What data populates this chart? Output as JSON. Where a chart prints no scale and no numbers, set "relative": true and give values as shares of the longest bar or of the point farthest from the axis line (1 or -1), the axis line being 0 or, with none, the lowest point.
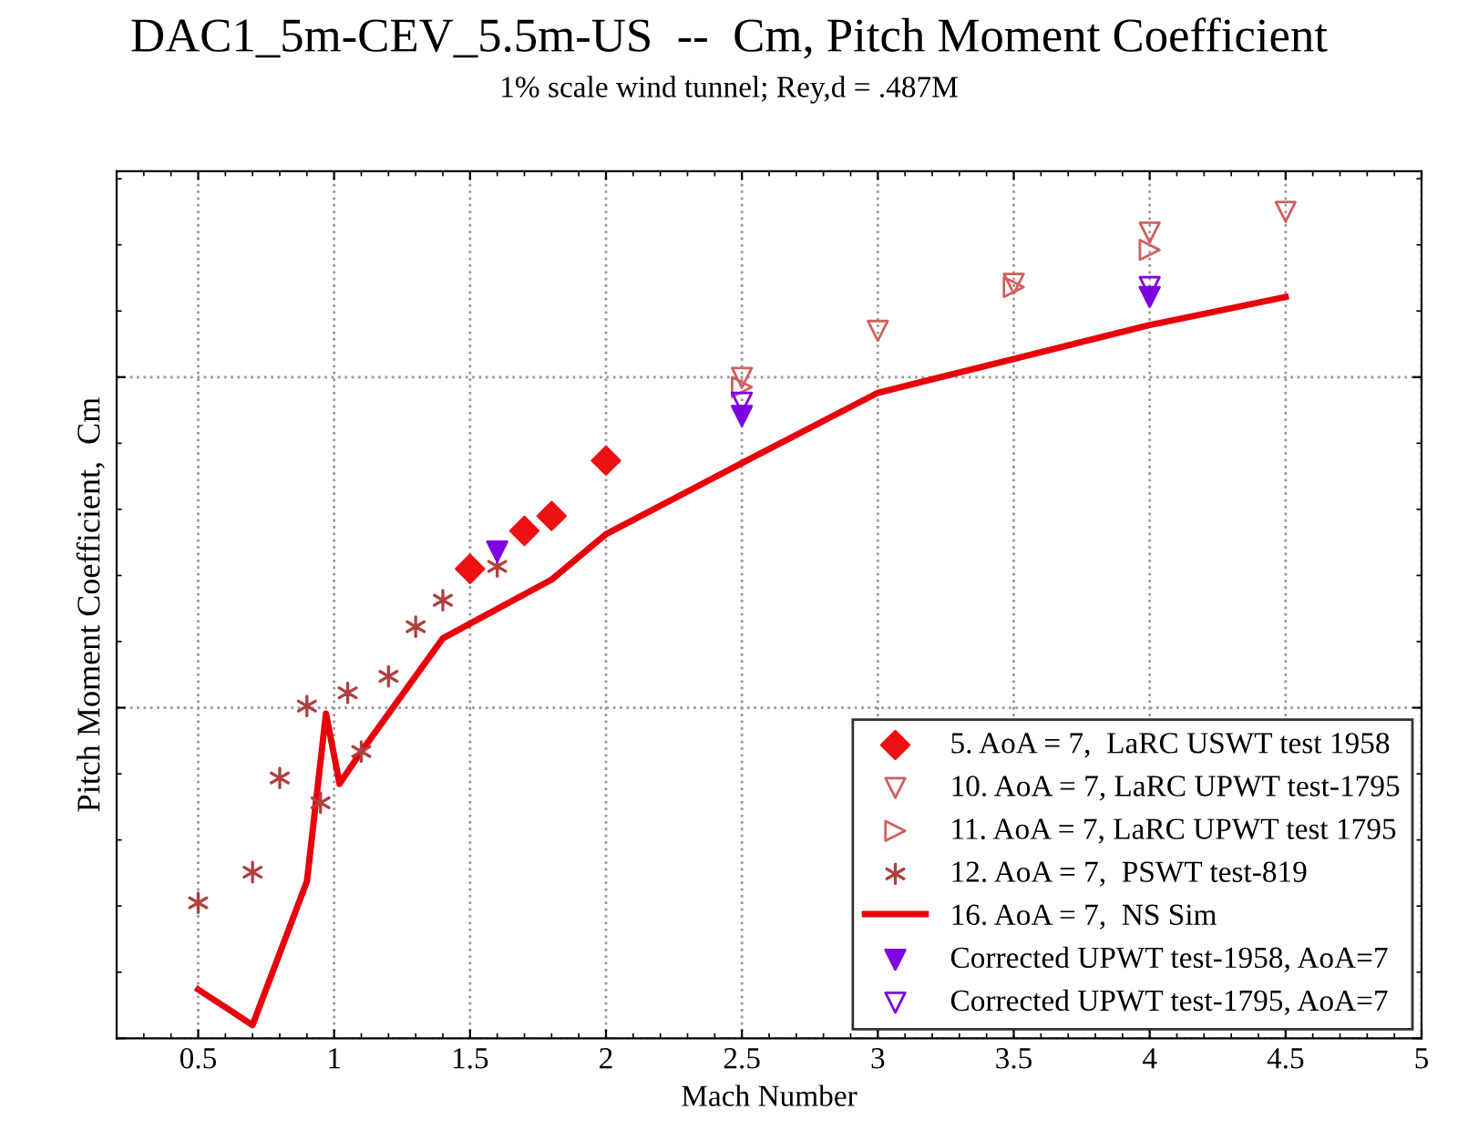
{
  "chart_data": {
    "type": "scatter",
    "title": "DAC1_5m-CEV_5.5m-US  --  Cm, Pitch Moment Coefficient",
    "subtitle": "1% scale wind tunnel; Rey,d = .487M",
    "xlabel": "Mach Number",
    "ylabel": "Pitch Moment Coefficient,  Cm",
    "relative": true,
    "xlim": [
      0.2,
      5
    ],
    "xticks": [
      0.5,
      1,
      1.5,
      2,
      2.5,
      3,
      3.5,
      4,
      4.5,
      5
    ],
    "grid": true,
    "legend": "bottom right",
    "tick_labels": "x",
    "series": [
      {
        "name": "5. AoA = 7,  LaRC USWT test 1958",
        "marker": "diamond",
        "color": "#ee1111",
        "x": [
          1.5,
          1.7,
          1.8,
          2.0
        ],
        "values": [
          0.568,
          0.614,
          0.632,
          0.699
        ]
      },
      {
        "name": "10. AoA = 7, LaRC UPWT test-1795",
        "marker": "triangle_down_open",
        "color": "#d06060",
        "x": [
          2.5,
          3.0,
          3.5,
          4.0,
          4.5
        ],
        "values": [
          0.799,
          0.856,
          0.913,
          0.975,
          1.0
        ]
      },
      {
        "name": "11. AoA = 7, LaRC UPWT test 1795",
        "marker": "triangle_right_open",
        "color": "#d06060",
        "x": [
          2.5,
          3.5,
          4.0
        ],
        "values": [
          0.788,
          0.909,
          0.954
        ]
      },
      {
        "name": "12. AoA = 7,  PSWT test-819",
        "marker": "cross",
        "color": "#b04040",
        "x": [
          0.5,
          0.7,
          0.8,
          0.9,
          0.95,
          1.05,
          1.1,
          1.2,
          1.3,
          1.4,
          1.6
        ],
        "values": [
          0.164,
          0.201,
          0.315,
          0.402,
          0.285,
          0.418,
          0.347,
          0.438,
          0.498,
          0.53,
          0.571
        ]
      },
      {
        "name": "16. AoA = 7,  NS Sim",
        "type": "line",
        "marker": "none",
        "line_style": "solid",
        "color": "#e8000b",
        "x": [
          0.5,
          0.7,
          0.9,
          0.97,
          1.02,
          1.1,
          1.4,
          1.8,
          2.0,
          2.5,
          3.0,
          3.5,
          4.0,
          4.5
        ],
        "values": [
          0.059,
          0.016,
          0.19,
          0.393,
          0.308,
          0.347,
          0.484,
          0.555,
          0.61,
          0.696,
          0.781,
          0.822,
          0.863,
          0.897
        ]
      },
      {
        "name": "Corrected UPWT test-1958, AoA=7",
        "marker": "triangle_down",
        "color": "#8000e0",
        "x": [
          1.6,
          2.5,
          4.0
        ],
        "values": [
          0.589,
          0.753,
          0.897
        ]
      },
      {
        "name": "Corrected UPWT test-1795, AoA=7",
        "marker": "triangle_down_open",
        "color": "#8000e0",
        "x": [
          2.5,
          4.0
        ],
        "values": [
          0.769,
          0.909
        ]
      }
    ]
  }
}
